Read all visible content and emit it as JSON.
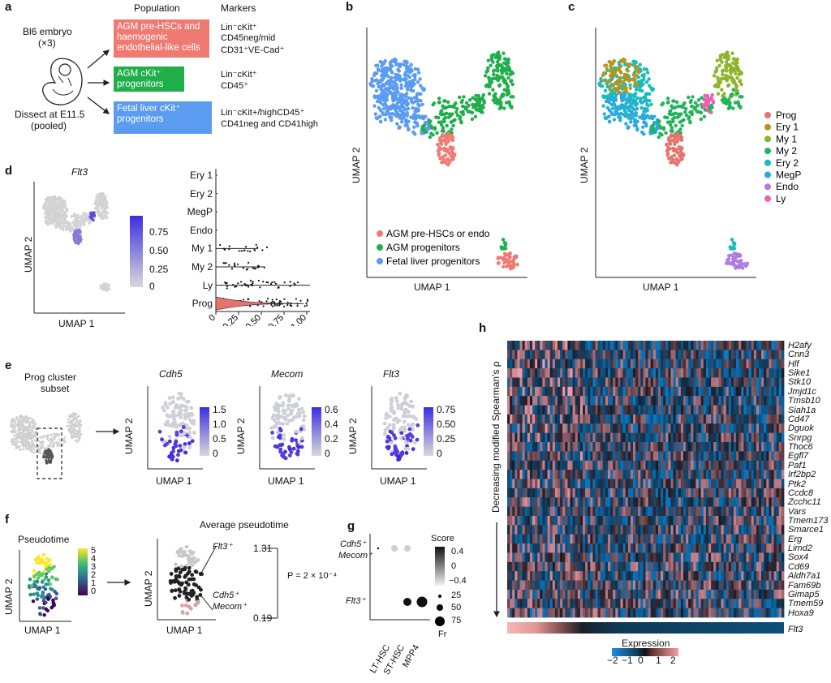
{
  "colors": {
    "agm_prehsc": "#f07a72",
    "agm_prog": "#1fae4a",
    "fl_prog": "#5b9cf0",
    "prog": "#e8736e",
    "ery1": "#b8941c",
    "my1": "#8cb52a",
    "my2": "#22b25a",
    "ery2": "#19bdb8",
    "megp": "#2ea8e0",
    "endo": "#b07be0",
    "ly": "#ef5fb5"
  },
  "panel_a": {
    "label": "a",
    "embryo_title": "Bl6 embryo",
    "embryo_count": "(×3)",
    "dissect_line1": "Dissect at E11.5",
    "dissect_line2": "(pooled)",
    "col_population": "Population",
    "col_markers": "Markers",
    "pop1": "AGM pre-HSCs and haemogenic endothelial-like cells",
    "pop2": "AGM cKit⁺ progenitors",
    "pop3": "Fetal liver cKit⁺ progenitors",
    "markers1_l1": "Lin⁻cKit⁺",
    "markers1_l2": "CD45neg/mid",
    "markers1_l3": "CD31⁺VE-Cad⁺",
    "markers2_l1": "Lin⁻cKit⁺",
    "markers2_l2": "CD45⁺",
    "markers3_l1": "Lin⁻cKit+/highCD45⁺",
    "markers3_l2": "CD41neg and CD41high"
  },
  "panel_b": {
    "label": "b",
    "xlabel": "UMAP 1",
    "ylabel": "UMAP 2",
    "legend": [
      "AGM pre-HSCs or endo",
      "AGM progenitors",
      "Fetal liver progenitors"
    ]
  },
  "panel_c": {
    "label": "c",
    "xlabel": "UMAP 1",
    "ylabel": "UMAP 2",
    "legend": [
      "Prog",
      "Ery 1",
      "My 1",
      "My 2",
      "Ery 2",
      "MegP",
      "Endo",
      "Ly"
    ]
  },
  "panel_d": {
    "label": "d",
    "title": "Flt3",
    "xlabel": "UMAP 1",
    "ylabel": "UMAP 2",
    "colorbar_ticks": [
      "0.75",
      "0.50",
      "0.25",
      "0"
    ],
    "violin_categories": [
      "Ery 1",
      "Ery 2",
      "MegP",
      "Endo",
      "My 1",
      "My 2",
      "Ly",
      "Prog"
    ],
    "violin_ticks": [
      "0",
      "0.25",
      "0.50",
      "0.75",
      "1.00"
    ]
  },
  "panel_e": {
    "label": "e",
    "subset_title_l1": "Prog cluster",
    "subset_title_l2": "subset",
    "plots": [
      {
        "title": "Cdh5",
        "ticks": [
          "1.5",
          "1.0",
          "0.5",
          "0"
        ]
      },
      {
        "title": "Mecom",
        "ticks": [
          "0.6",
          "0.4",
          "0.2",
          "0"
        ]
      },
      {
        "title": "Flt3",
        "ticks": [
          "0.75",
          "0.50",
          "0.25",
          "0"
        ]
      }
    ],
    "xlabel": "UMAP 1",
    "ylabel": "UMAP 2"
  },
  "panel_f": {
    "label": "f",
    "title_left": "Pseudotime",
    "colorbar_ticks": [
      "5",
      "4",
      "3",
      "2",
      "1",
      "0"
    ],
    "title_right": "Average pseudotime",
    "flt3_label": "Flt3⁺",
    "cdh5_label": "Cdh5⁺",
    "mecom_label": "Mecom⁺",
    "value_top": "1.31",
    "value_bottom": "0.19",
    "pvalue": "P = 2 × 10⁻⁴",
    "xlabel": "UMAP 1",
    "ylabel": "UMAP 2"
  },
  "panel_g": {
    "label": "g",
    "row1_l1": "Cdh5⁺",
    "row1_l2": "Mecom⁺",
    "row2": "Flt3⁺",
    "columns": [
      "LT-HSC",
      "ST-HSC",
      "MPP4"
    ],
    "score_title": "Score",
    "score_ticks": [
      "0.4",
      "0",
      "−0.4"
    ],
    "size_ticks": [
      "25",
      "50",
      "75"
    ],
    "size_title": "Fr"
  },
  "panel_h": {
    "label": "h",
    "ylabel": "Decreasing modified Spearman's ρ",
    "genes": [
      "H2afy",
      "Cnn3",
      "Hlf",
      "Sike1",
      "Stk10",
      "Jmjd1c",
      "Tmsb10",
      "Siah1a",
      "Cd47",
      "Dguok",
      "Snrpg",
      "Thoc6",
      "Egfl7",
      "Paf1",
      "Irf2bp2",
      "Ptk2",
      "Ccdc8",
      "Zcchc11",
      "Vars",
      "Tmem173",
      "Smarce1",
      "Erg",
      "Limd2",
      "Sox4",
      "Cd69",
      "Aldh7a1",
      "Fam69b",
      "Gimap5",
      "Tmem59",
      "Hoxa9"
    ],
    "bottom_gene": "Flt3",
    "expression_title": "Expression",
    "expression_ticks": [
      "−2",
      "−1",
      "0",
      "1",
      "2"
    ]
  }
}
